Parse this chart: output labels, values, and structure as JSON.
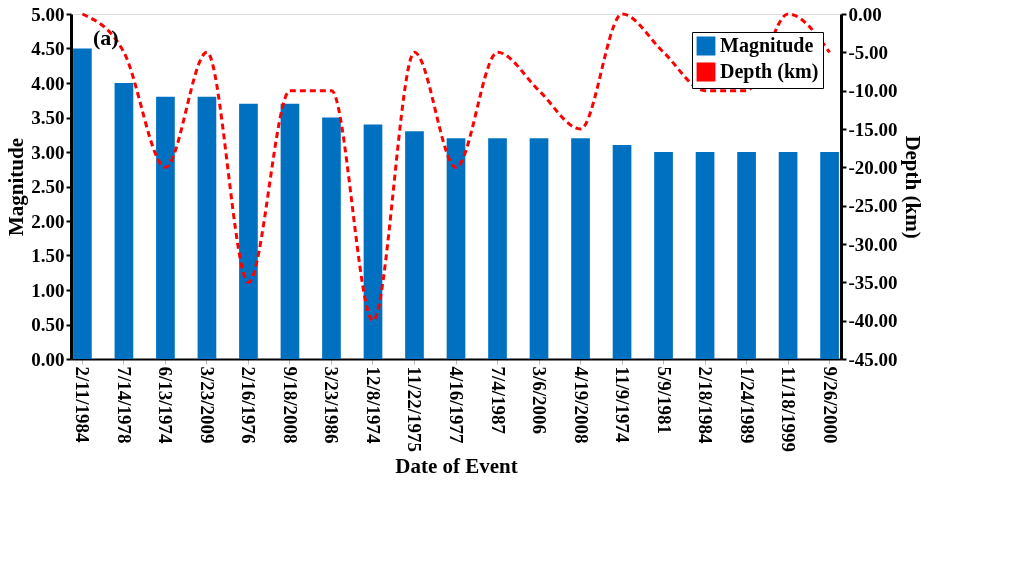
{
  "chart_data": {
    "type": "bar",
    "xlabel": "Date of Event",
    "ylabel": "Magnitude",
    "y2label": "Depth (km)",
    "annotations": [
      "(a)"
    ],
    "categories": [
      "2/11/1984",
      "7/14/1978",
      "6/13/1974",
      "3/23/2009",
      "2/16/1976",
      "9/18/2008",
      "3/23/1986",
      "12/8/1974",
      "11/22/1975",
      "4/16/1977",
      "7/4/1987",
      "3/6/2006",
      "4/19/2008",
      "11/9/1974",
      "5/9/1981",
      "2/18/1984",
      "1/24/1989",
      "11/18/1999",
      "9/26/2000"
    ],
    "series": [
      {
        "name": "Magnitude",
        "color": "#0070c0",
        "values": [
          4.5,
          4.0,
          3.8,
          3.8,
          3.7,
          3.7,
          3.5,
          3.4,
          3.3,
          3.2,
          3.2,
          3.2,
          3.2,
          3.1,
          3.0,
          3.0,
          3.0,
          3.0,
          3.0
        ]
      },
      {
        "name": "Depth (km)",
        "type": "line",
        "axis": "y2",
        "color": "#ff0000",
        "line_style": "dashed",
        "values": [
          0,
          -5,
          -20,
          -5,
          -35,
          -10,
          -10,
          -40,
          -5,
          -20,
          -5,
          -10,
          -15,
          0,
          -5,
          -10,
          -10,
          0,
          -5
        ]
      }
    ],
    "ylim": [
      0,
      5
    ],
    "yticks": [
      {
        "value": 0,
        "label": "0.00"
      },
      {
        "value": 0.5,
        "label": "0.50"
      },
      {
        "value": 1,
        "label": "1.00"
      },
      {
        "value": 1.5,
        "label": "1.50"
      },
      {
        "value": 2,
        "label": "2.00"
      },
      {
        "value": 2.5,
        "label": "2.50"
      },
      {
        "value": 3,
        "label": "3.00"
      },
      {
        "value": 3.5,
        "label": "3.50"
      },
      {
        "value": 4,
        "label": "4.00"
      },
      {
        "value": 4.5,
        "label": "4.50"
      },
      {
        "value": 5,
        "label": "5.00"
      }
    ],
    "y2lim": [
      -45,
      0
    ],
    "y2ticks": [
      {
        "value": -45,
        "label": "-45.00"
      },
      {
        "value": -40,
        "label": "-40.00"
      },
      {
        "value": -35,
        "label": "-35.00"
      },
      {
        "value": -30,
        "label": "-30.00"
      },
      {
        "value": -25,
        "label": "-25.00"
      },
      {
        "value": -20,
        "label": "-20.00"
      },
      {
        "value": -15,
        "label": "-15.00"
      },
      {
        "value": -10,
        "label": "-10.00"
      },
      {
        "value": -5,
        "label": "-5.00"
      },
      {
        "value": 0,
        "label": "0.00"
      }
    ],
    "grid": false,
    "legend": "top right"
  }
}
